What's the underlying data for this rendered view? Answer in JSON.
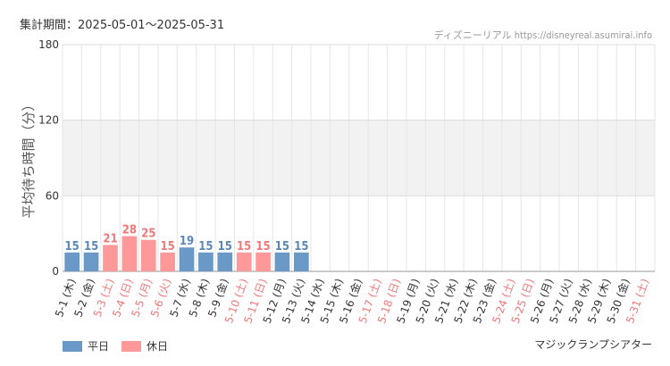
{
  "header": {
    "period_label": "集計期間：2025-05-01～2025-05-31",
    "credit": "ディズニーリアル https://disneyreal.asumirai.info",
    "attraction": "マジックランプシアター"
  },
  "legend": [
    {
      "label": "平日",
      "color": "#6b99c7"
    },
    {
      "label": "休日",
      "color": "#ff9999"
    }
  ],
  "colors": {
    "weekday_bar": "#6b99c7",
    "holiday_bar": "#ff9999",
    "weekday_text": "#5a87b8",
    "holiday_text": "#f07878",
    "axis_text": "#333333",
    "band": "#f2f2f2",
    "grid": "#e6e6e6"
  },
  "chart_data": {
    "type": "bar",
    "ylabel": "平均待ち時間（分）",
    "ylim": [
      0,
      180
    ],
    "yticks": [
      0,
      60,
      120,
      180
    ],
    "shaded_band": [
      60,
      120
    ],
    "grid": true,
    "legend_placement": "bottom-left",
    "categories": [
      "5-1 (木)",
      "5-2 (金)",
      "5-3 (土)",
      "5-4 (日)",
      "5-5 (月)",
      "5-6 (火)",
      "5-7 (水)",
      "5-8 (木)",
      "5-9 (金)",
      "5-10 (土)",
      "5-11 (日)",
      "5-12 (月)",
      "5-13 (火)",
      "5-14 (水)",
      "5-15 (木)",
      "5-16 (金)",
      "5-17 (土)",
      "5-18 (日)",
      "5-19 (月)",
      "5-20 (火)",
      "5-21 (水)",
      "5-22 (木)",
      "5-23 (金)",
      "5-24 (土)",
      "5-25 (日)",
      "5-26 (月)",
      "5-27 (火)",
      "5-28 (水)",
      "5-29 (木)",
      "5-30 (金)",
      "5-31 (土)"
    ],
    "values": [
      15,
      15,
      21,
      28,
      25,
      15,
      19,
      15,
      15,
      15,
      15,
      15,
      15,
      null,
      null,
      null,
      null,
      null,
      null,
      null,
      null,
      null,
      null,
      null,
      null,
      null,
      null,
      null,
      null,
      null,
      null
    ],
    "day_type": [
      "平日",
      "平日",
      "休日",
      "休日",
      "休日",
      "休日",
      "平日",
      "平日",
      "平日",
      "休日",
      "休日",
      "平日",
      "平日",
      "平日",
      "平日",
      "平日",
      "休日",
      "休日",
      "平日",
      "平日",
      "平日",
      "平日",
      "平日",
      "休日",
      "休日",
      "平日",
      "平日",
      "平日",
      "平日",
      "平日",
      "休日"
    ]
  }
}
